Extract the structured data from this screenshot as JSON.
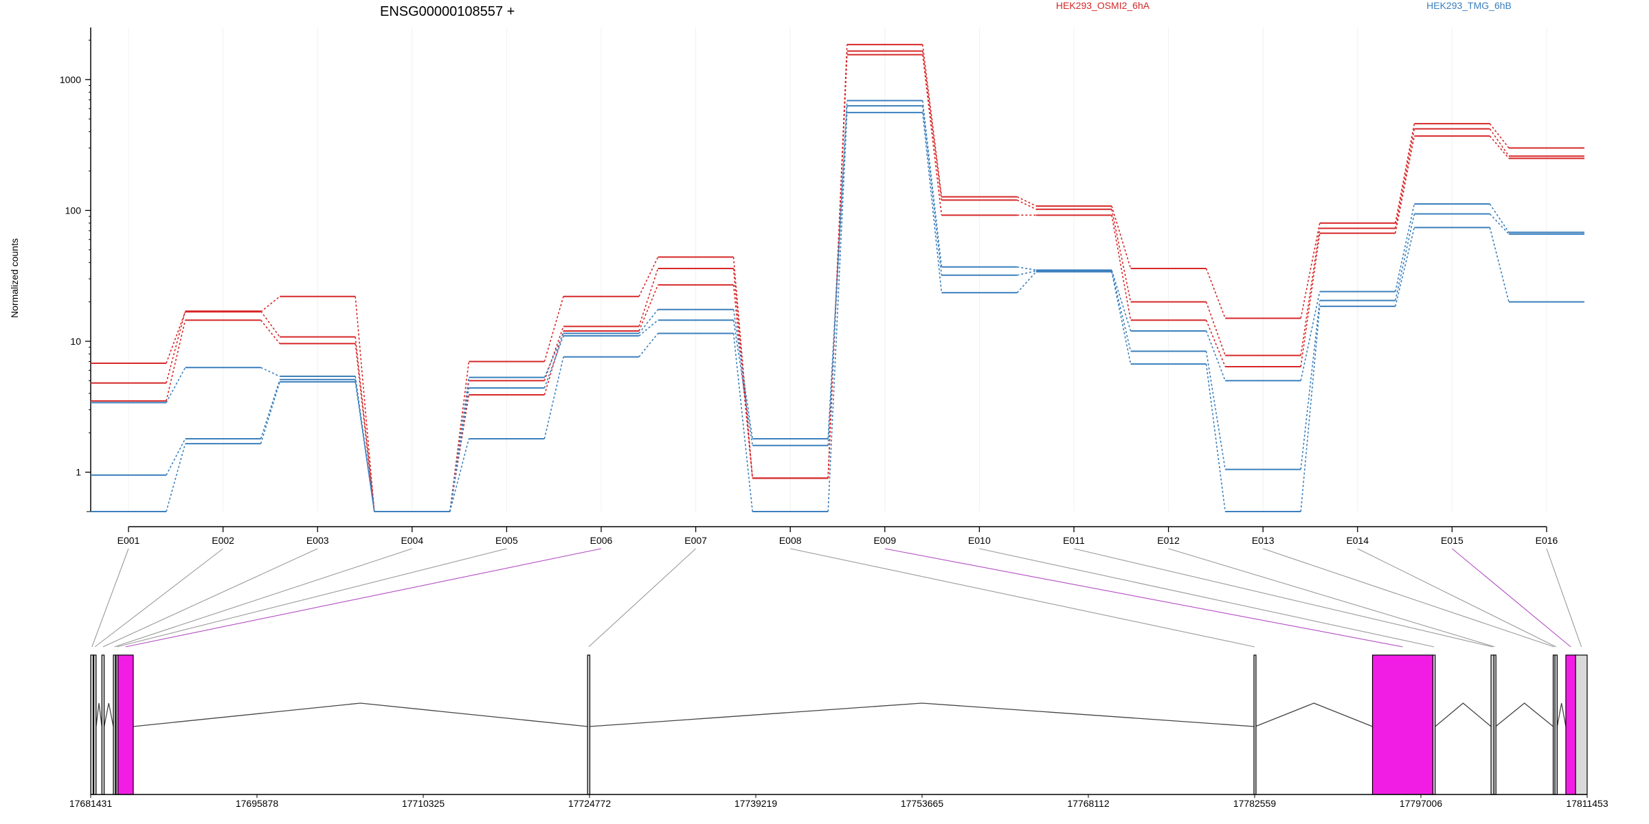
{
  "chart_data": [
    {
      "type": "line",
      "title": "ENSG00000108557 +",
      "xlabel": "",
      "ylabel": "Normalized counts",
      "scale": "log10",
      "ylim": [
        0.5,
        2500
      ],
      "y_ticks": [
        {
          "value": 1,
          "label": "1"
        },
        {
          "value": 10,
          "label": "10"
        },
        {
          "value": 100,
          "label": "100"
        },
        {
          "value": 1000,
          "label": "1000"
        }
      ],
      "categories": [
        "E001",
        "E002",
        "E003",
        "E004",
        "E005",
        "E006",
        "E007",
        "E008",
        "E009",
        "E010",
        "E011",
        "E012",
        "E013",
        "E014",
        "E015",
        "E016"
      ],
      "legend": [
        {
          "name": "HEK293_OSMI2_6hA",
          "color": "#d62728"
        },
        {
          "name": "HEK293_TMG_6hB",
          "color": "#3a7fbd"
        }
      ],
      "series": [
        {
          "group": "HEK293_OSMI2_6hA",
          "color": "#d62728",
          "values": [
            6.8,
            16.8,
            22,
            0.5,
            7,
            22,
            44,
            0.9,
            1850,
            127,
            108,
            36,
            15,
            80,
            460,
            300
          ]
        },
        {
          "group": "HEK293_OSMI2_6hA",
          "color": "#d62728",
          "values": [
            4.8,
            17,
            10.8,
            0.5,
            5,
            13,
            36,
            0.9,
            1650,
            120,
            102,
            20,
            7.8,
            73,
            420,
            260
          ]
        },
        {
          "group": "HEK293_OSMI2_6hA",
          "color": "#d62728",
          "values": [
            3.5,
            14.5,
            9.6,
            0.5,
            3.9,
            12,
            27,
            0.9,
            1550,
            92,
            92,
            14.5,
            6.4,
            67,
            370,
            250
          ]
        },
        {
          "group": "HEK293_TMG_6hB",
          "color": "#3a7fbd",
          "values": [
            3.4,
            6.3,
            5.4,
            0.5,
            5.3,
            11.5,
            17.5,
            1.8,
            690,
            37,
            35,
            12,
            5,
            24,
            112,
            68
          ]
        },
        {
          "group": "HEK293_TMG_6hB",
          "color": "#3a7fbd",
          "values": [
            0.95,
            1.8,
            5.1,
            0.5,
            4.4,
            11,
            14.5,
            1.6,
            630,
            32,
            34.5,
            8.4,
            1.05,
            20.5,
            94,
            66
          ]
        },
        {
          "group": "HEK293_TMG_6hB",
          "color": "#3a7fbd",
          "values": [
            0.5,
            1.65,
            4.9,
            0.5,
            1.8,
            7.6,
            11.5,
            0.5,
            560,
            23.5,
            34,
            6.7,
            0.5,
            18.5,
            74,
            20
          ]
        }
      ]
    },
    {
      "type": "gene-model",
      "title": "",
      "genomic_range": [
        17681431,
        17811453
      ],
      "x_ticks": [
        {
          "value": 17681431,
          "label": "17681431"
        },
        {
          "value": 17695878,
          "label": "17695878"
        },
        {
          "value": 17710325,
          "label": "17710325"
        },
        {
          "value": 17724772,
          "label": "17724772"
        },
        {
          "value": 17739219,
          "label": "17739219"
        },
        {
          "value": 17753665,
          "label": "17753665"
        },
        {
          "value": 17768112,
          "label": "17768112"
        },
        {
          "value": 17782559,
          "label": "17782559"
        },
        {
          "value": 17797006,
          "label": "17797006"
        },
        {
          "value": 17811453,
          "label": "17811453"
        }
      ],
      "exons": [
        {
          "name": "E001",
          "start": 17681431,
          "end": 17681650,
          "highlight": false
        },
        {
          "name": "E002",
          "start": 17681700,
          "end": 17681900,
          "highlight": false
        },
        {
          "name": "E003",
          "start": 17682400,
          "end": 17682600,
          "highlight": false
        },
        {
          "name": "E004",
          "start": 17683400,
          "end": 17683560,
          "highlight": false
        },
        {
          "name": "E005",
          "start": 17683640,
          "end": 17683780,
          "highlight": false
        },
        {
          "name": "E006",
          "start": 17683800,
          "end": 17685130,
          "highlight": true
        },
        {
          "name": "E007",
          "start": 17724600,
          "end": 17724800,
          "highlight": false
        },
        {
          "name": "E008",
          "start": 17782500,
          "end": 17782620,
          "highlight": false
        },
        {
          "name": "E009",
          "start": 17792800,
          "end": 17798050,
          "highlight": true
        },
        {
          "name": "E010",
          "start": 17798050,
          "end": 17798250,
          "highlight": false
        },
        {
          "name": "E011",
          "start": 17803100,
          "end": 17803350,
          "highlight": false
        },
        {
          "name": "E012",
          "start": 17803350,
          "end": 17803500,
          "highlight": false
        },
        {
          "name": "E013",
          "start": 17808500,
          "end": 17808650,
          "highlight": false
        },
        {
          "name": "E014",
          "start": 17808650,
          "end": 17808850,
          "highlight": false
        },
        {
          "name": "E015",
          "start": 17809600,
          "end": 17810450,
          "highlight": true
        },
        {
          "name": "E016",
          "start": 17810450,
          "end": 17811453,
          "highlight": false
        }
      ],
      "colors": {
        "highlight": "#f21de5",
        "exon": "#d9d9d9",
        "connector": "#999999",
        "connector_highlight": "#b24cc2"
      }
    }
  ]
}
